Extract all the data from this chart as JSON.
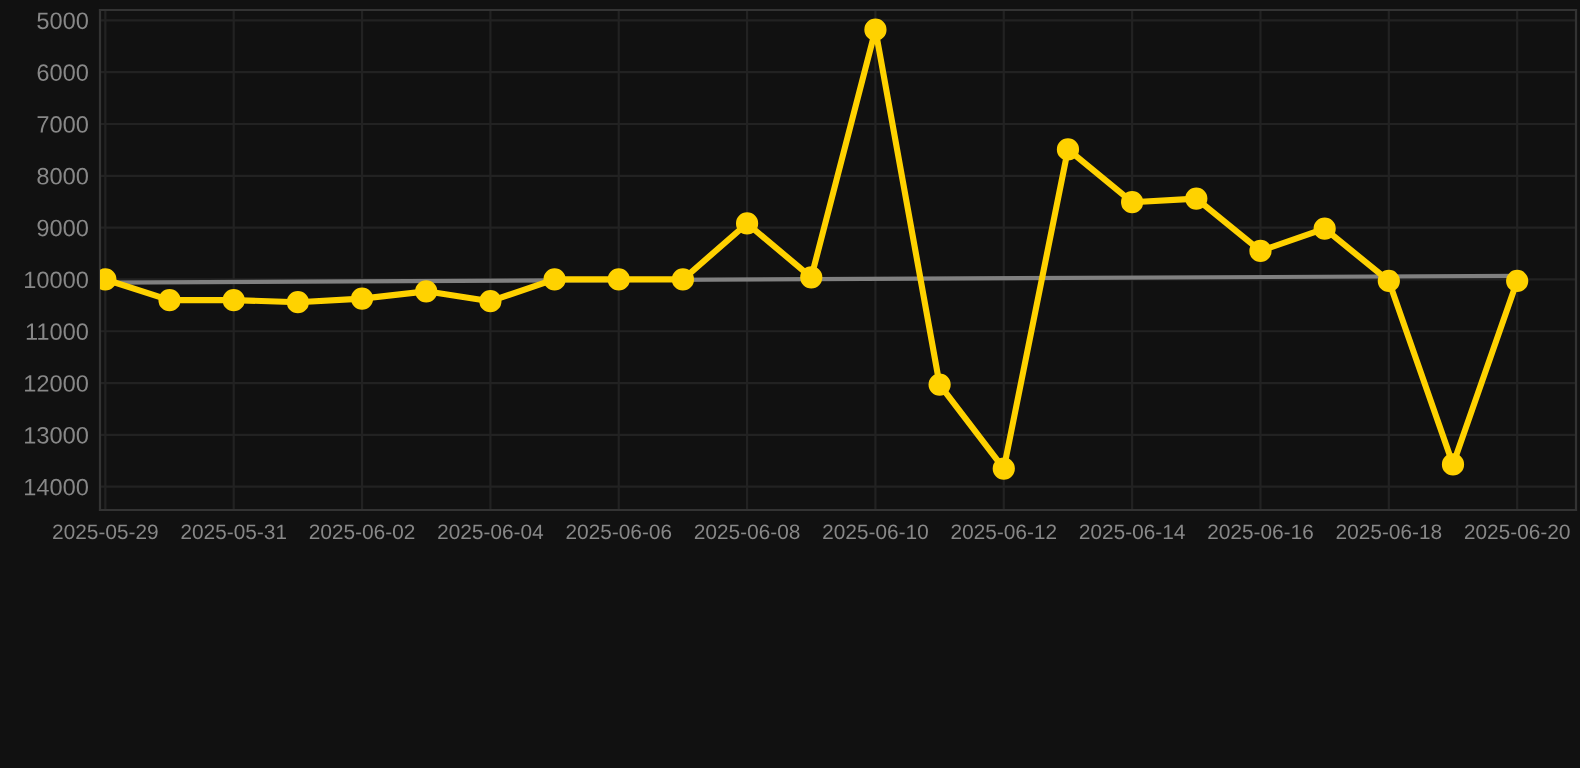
{
  "chart_data": {
    "type": "line",
    "x": [
      "2025-05-29",
      "2025-05-30",
      "2025-05-31",
      "2025-06-01",
      "2025-06-02",
      "2025-06-03",
      "2025-06-04",
      "2025-06-05",
      "2025-06-06",
      "2025-06-07",
      "2025-06-08",
      "2025-06-09",
      "2025-06-10",
      "2025-06-11",
      "2025-06-12",
      "2025-06-13",
      "2025-06-14",
      "2025-06-15",
      "2025-06-16",
      "2025-06-17",
      "2025-06-18",
      "2025-06-19",
      "2025-06-20"
    ],
    "series": [
      {
        "color": "#ffd200",
        "marker": "circle",
        "values": [
          10000,
          10400,
          10400,
          10440,
          10370,
          10230,
          10420,
          10000,
          10000,
          10000,
          8920,
          9960,
          5180,
          12030,
          13650,
          7490,
          8510,
          8440,
          9450,
          9020,
          10030,
          13570,
          10030
        ]
      },
      {
        "color": "#808080",
        "marker": "none",
        "x": [
          "2025-05-29",
          "2025-06-20"
        ],
        "values": [
          10060,
          9930
        ]
      }
    ],
    "ylim": [
      14450,
      4800
    ],
    "yticks": [
      5000,
      6000,
      7000,
      8000,
      9000,
      10000,
      11000,
      12000,
      13000,
      14000
    ],
    "xlim": [
      "2025-05-28T22:00",
      "2025-06-20T22:00"
    ],
    "xticks": [
      "2025-05-29",
      "2025-05-31",
      "2025-06-02",
      "2025-06-04",
      "2025-06-06",
      "2025-06-08",
      "2025-06-10",
      "2025-06-12",
      "2025-06-14",
      "2025-06-16",
      "2025-06-18",
      "2025-06-20"
    ],
    "grid": true,
    "legend": false,
    "line_style": "solid"
  }
}
